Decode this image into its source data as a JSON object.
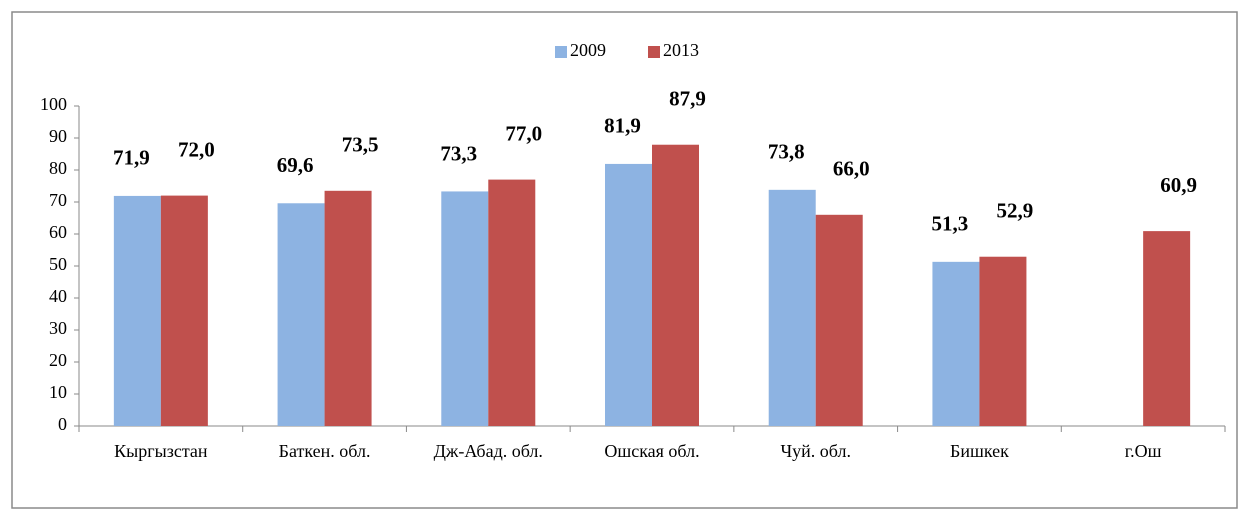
{
  "chart_data": {
    "type": "bar",
    "categories": [
      "Кыргызстан",
      "Баткен. обл.",
      "Дж-Абад. обл.",
      "Ошская обл.",
      "Чуй. обл.",
      "Бишкек",
      "г.Ош"
    ],
    "series": [
      {
        "name": "2009",
        "color": "#8db3e2",
        "values": [
          71.9,
          69.6,
          73.3,
          81.9,
          73.8,
          51.3,
          null
        ],
        "value_labels": [
          "71,9",
          "69,6",
          "73,3",
          "81,9",
          "73,8",
          "51,3",
          null
        ]
      },
      {
        "name": "2013",
        "color": "#c0504d",
        "values": [
          72.0,
          73.5,
          77.0,
          87.9,
          66.0,
          52.9,
          60.9
        ],
        "value_labels": [
          "72,0",
          "73,5",
          "77,0",
          "87,9",
          "66,0",
          "52,9",
          "60,9"
        ]
      }
    ],
    "ylim": [
      0,
      100
    ],
    "yticks": [
      0,
      10,
      20,
      30,
      40,
      50,
      60,
      70,
      80,
      90,
      100
    ],
    "grid": false,
    "legend": "top"
  }
}
